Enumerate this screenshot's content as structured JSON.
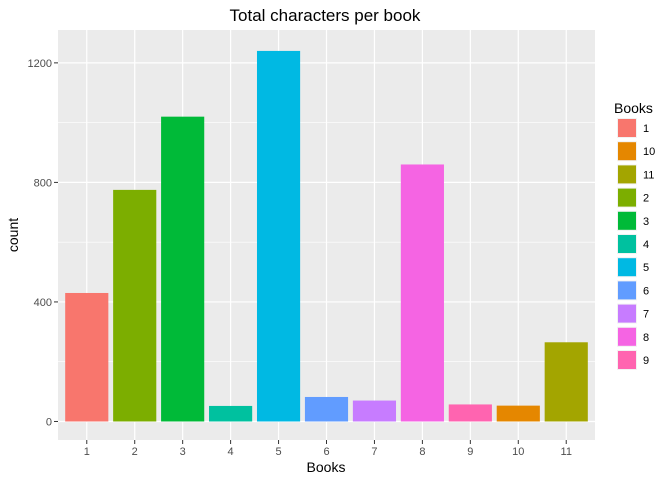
{
  "chart_data": {
    "type": "bar",
    "title": "Total characters per book",
    "xlabel": "Books",
    "ylabel": "count",
    "categories": [
      "1",
      "2",
      "3",
      "4",
      "5",
      "6",
      "7",
      "8",
      "9",
      "10",
      "11"
    ],
    "values": [
      430,
      775,
      1020,
      52,
      1240,
      82,
      70,
      860,
      57,
      53,
      265
    ],
    "bar_colors": [
      "#F8766D",
      "#7CAE00",
      "#00BA38",
      "#00C19F",
      "#00B9E3",
      "#619CFF",
      "#C77CFF",
      "#F564E3",
      "#FF64B0",
      "#E58700",
      "#A3A500"
    ],
    "ylim": [
      -62,
      1310
    ],
    "yticks": [
      0,
      400,
      800,
      1200
    ],
    "grid": true,
    "background": "#EBEBEB",
    "legend": {
      "title": "Books",
      "placement": "right",
      "items": [
        {
          "label": "1",
          "color": "#F8766D"
        },
        {
          "label": "10",
          "color": "#E58700"
        },
        {
          "label": "11",
          "color": "#A3A500"
        },
        {
          "label": "2",
          "color": "#7CAE00"
        },
        {
          "label": "3",
          "color": "#00BA38"
        },
        {
          "label": "4",
          "color": "#00C19F"
        },
        {
          "label": "5",
          "color": "#00B9E3"
        },
        {
          "label": "6",
          "color": "#619CFF"
        },
        {
          "label": "7",
          "color": "#C77CFF"
        },
        {
          "label": "8",
          "color": "#F564E3"
        },
        {
          "label": "9",
          "color": "#FF64B0"
        }
      ]
    }
  }
}
